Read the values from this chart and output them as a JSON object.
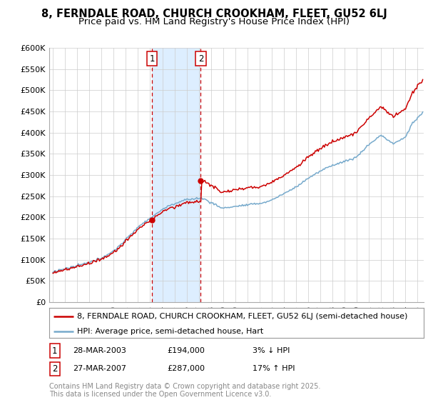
{
  "title": "8, FERNDALE ROAD, CHURCH CROOKHAM, FLEET, GU52 6LJ",
  "subtitle": "Price paid vs. HM Land Registry's House Price Index (HPI)",
  "ylabel_ticks": [
    "£0",
    "£50K",
    "£100K",
    "£150K",
    "£200K",
    "£250K",
    "£300K",
    "£350K",
    "£400K",
    "£450K",
    "£500K",
    "£550K",
    "£600K"
  ],
  "ylim": [
    0,
    600000
  ],
  "ytick_values": [
    0,
    50000,
    100000,
    150000,
    200000,
    250000,
    300000,
    350000,
    400000,
    450000,
    500000,
    550000,
    600000
  ],
  "sale1_year": 2003,
  "sale1_month": 3,
  "sale1_price": 194000,
  "sale2_year": 2007,
  "sale2_month": 3,
  "sale2_price": 287000,
  "sale1_date": "28-MAR-2003",
  "sale2_date": "27-MAR-2007",
  "sale1_pct": "3% ↓ HPI",
  "sale2_pct": "17% ↑ HPI",
  "legend_property": "8, FERNDALE ROAD, CHURCH CROOKHAM, FLEET, GU52 6LJ (semi-detached house)",
  "legend_hpi": "HPI: Average price, semi-detached house, Hart",
  "footer": "Contains HM Land Registry data © Crown copyright and database right 2025.\nThis data is licensed under the Open Government Licence v3.0.",
  "property_color": "#cc0000",
  "hpi_color": "#77aacc",
  "highlight_color": "#ddeeff",
  "grid_color": "#cccccc",
  "background_color": "#ffffff",
  "box_color": "#cc0000",
  "title_fontsize": 10.5,
  "subtitle_fontsize": 9.5,
  "tick_fontsize": 8,
  "legend_fontsize": 8,
  "footer_fontsize": 7
}
